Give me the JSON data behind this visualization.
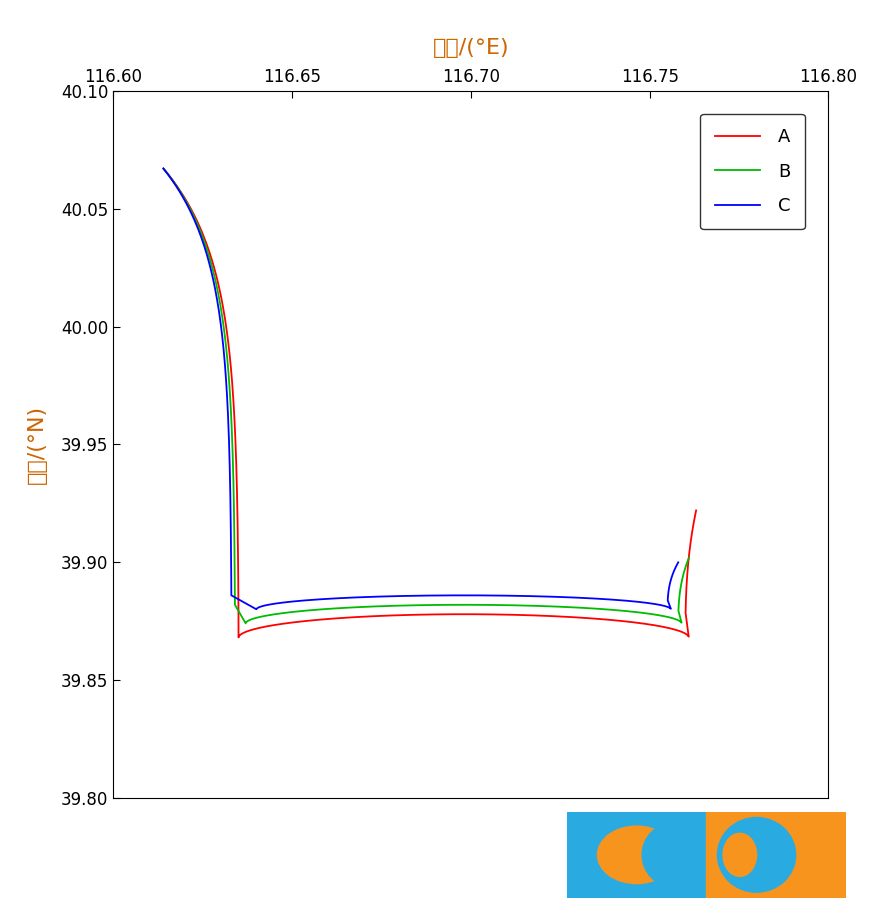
{
  "title": "经度/(°E)",
  "ylabel": "纬度/(°N)",
  "xlim": [
    116.6,
    116.8
  ],
  "ylim": [
    39.8,
    40.1
  ],
  "xticks": [
    116.6,
    116.65,
    116.7,
    116.75,
    116.8
  ],
  "yticks": [
    39.8,
    39.85,
    39.9,
    39.95,
    40.0,
    40.05,
    40.1
  ],
  "legend_labels": [
    "A",
    "B",
    "C"
  ],
  "line_colors": [
    "#ff0000",
    "#00bb00",
    "#0000ff"
  ],
  "line_color_C_legend": "#000000",
  "background_color": "#ffffff",
  "title_color": "#cc6600",
  "axis_label_color": "#cc6600",
  "tick_label_color": "#333333",
  "watermark_blue": "#29abe2",
  "watermark_orange": "#f7941d",
  "figwidth": 8.72,
  "figheight": 9.07,
  "dpi": 100
}
